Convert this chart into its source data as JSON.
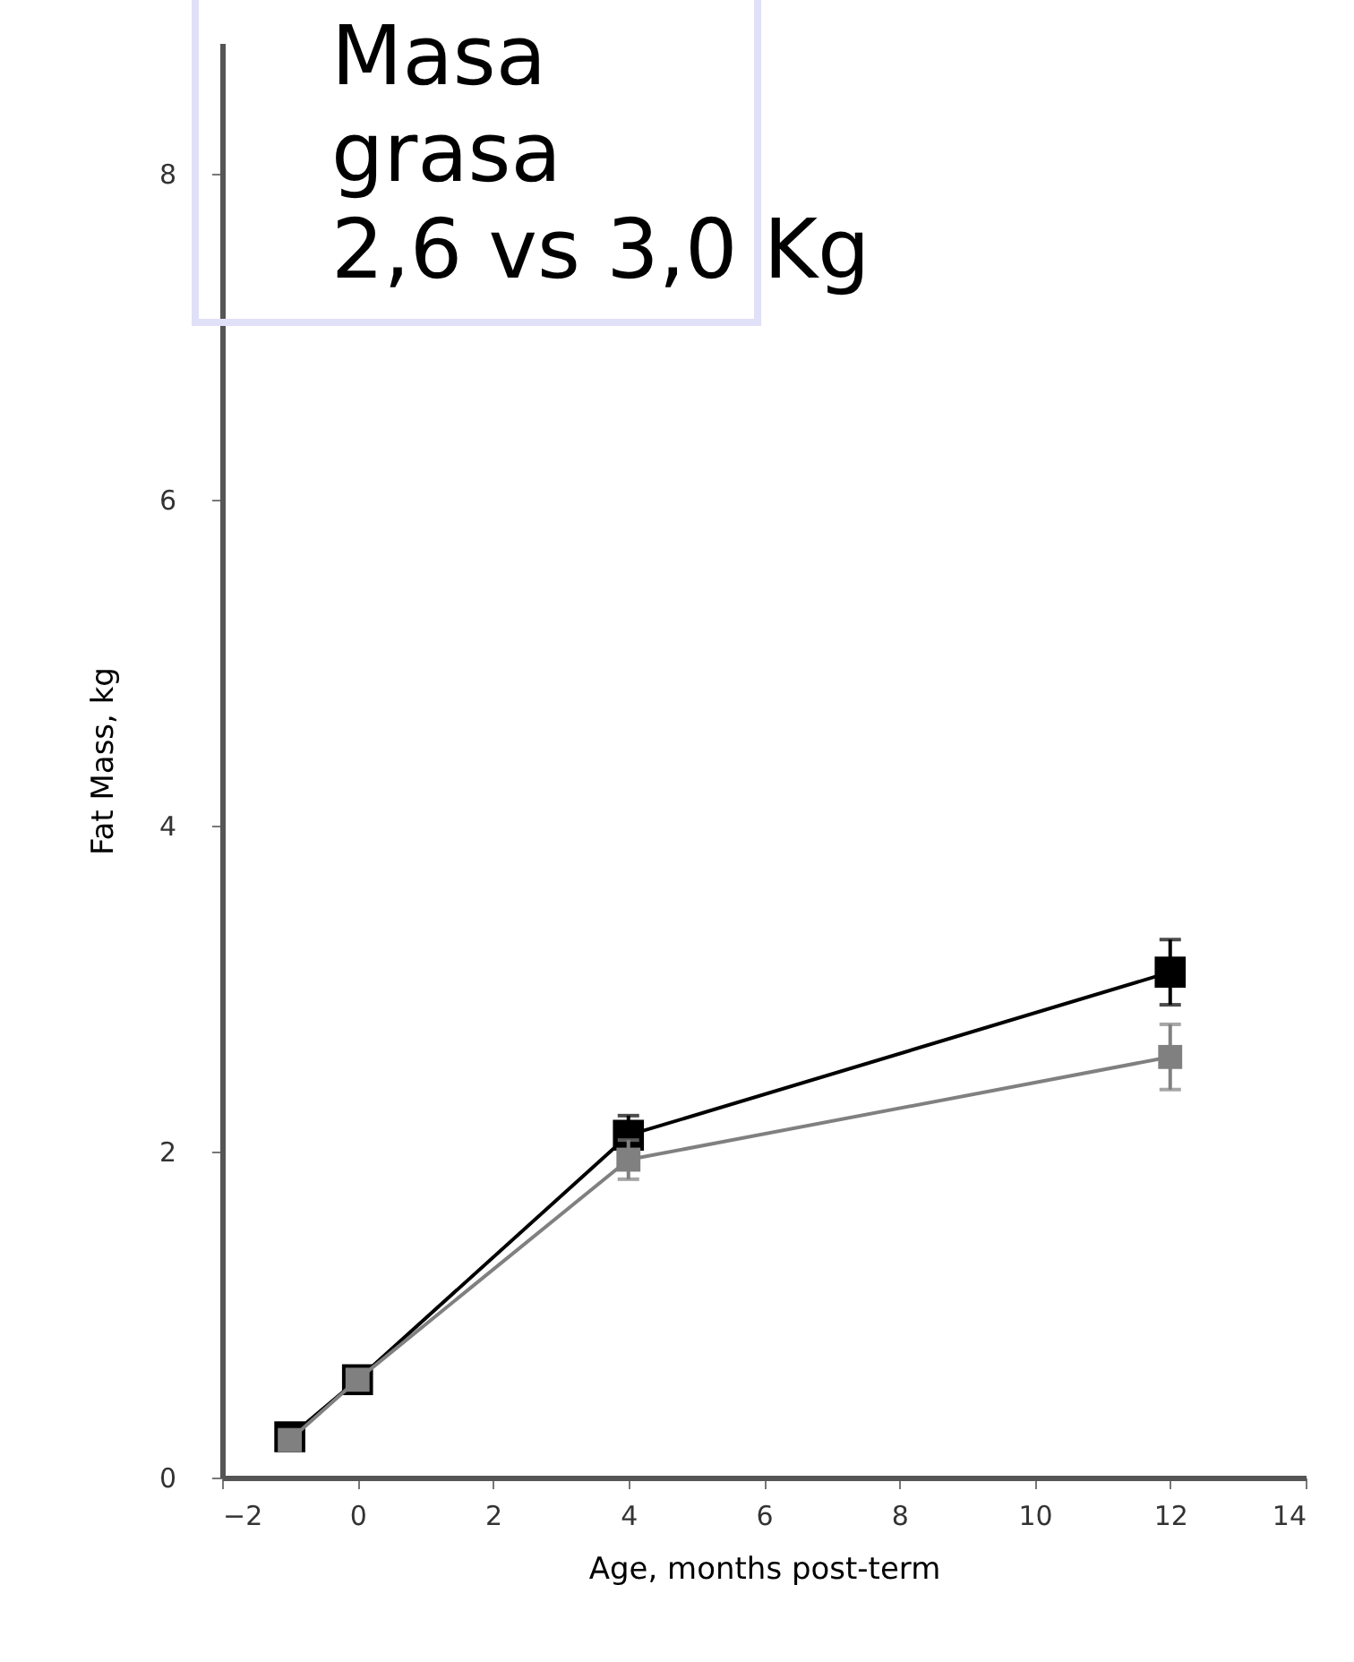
{
  "chart_data": {
    "type": "line",
    "xlabel": "Age, months post-term",
    "ylabel": "Fat Mass, kg",
    "annotations": [
      "Masa grasa",
      "2,6 vs 3,0 Kg"
    ],
    "x": [
      -1,
      0,
      4,
      12
    ],
    "series": [
      {
        "color": "#000000",
        "values": [
          0.25,
          0.6,
          2.1,
          3.1
        ],
        "errors": [
          0.05,
          0.05,
          0.12,
          0.2
        ]
      },
      {
        "color": "#808080",
        "values": [
          0.23,
          0.6,
          1.95,
          2.58
        ],
        "errors": [
          0.05,
          0.05,
          0.12,
          0.2
        ]
      }
    ],
    "xlim": [
      -2,
      14
    ],
    "xticks": [
      -2,
      0,
      2,
      4,
      6,
      8,
      10,
      12,
      14
    ],
    "ylim": [
      0,
      8.8
    ],
    "yticks": [
      0,
      2,
      4,
      6,
      8
    ],
    "grid": false,
    "marker": "square",
    "line_style": "solid"
  }
}
